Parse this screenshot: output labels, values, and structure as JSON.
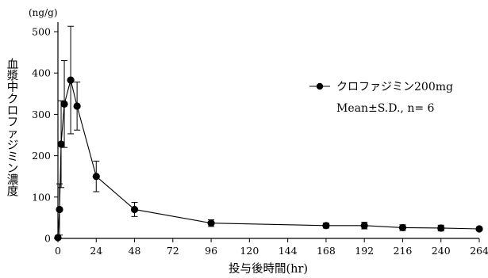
{
  "chart_data": {
    "type": "line",
    "unit_label": "(ng/g)",
    "ylabel": "血漿中クロファジミン濃度",
    "xlabel": "投与後時間(hr)",
    "xlim": [
      0,
      264
    ],
    "ylim": [
      0,
      500
    ],
    "x_ticks": [
      0,
      24,
      48,
      72,
      96,
      120,
      144,
      168,
      192,
      216,
      240,
      264
    ],
    "y_ticks": [
      0,
      100,
      200,
      300,
      400,
      500
    ],
    "legend": {
      "position": "top-right",
      "entries": [
        "クロファジミン200mg",
        "Mean±S.D., n= 6"
      ]
    },
    "series": [
      {
        "name": "クロファジミン200mg",
        "x": [
          0,
          1,
          2,
          4,
          8,
          12,
          24,
          48,
          96,
          168,
          192,
          216,
          240,
          264
        ],
        "y": [
          2,
          70,
          228,
          325,
          383,
          320,
          150,
          70,
          37,
          31,
          31,
          26,
          25,
          23
        ],
        "err": [
          0,
          62,
          105,
          105,
          130,
          58,
          37,
          17,
          8,
          6,
          8,
          7,
          7,
          4
        ]
      }
    ]
  }
}
